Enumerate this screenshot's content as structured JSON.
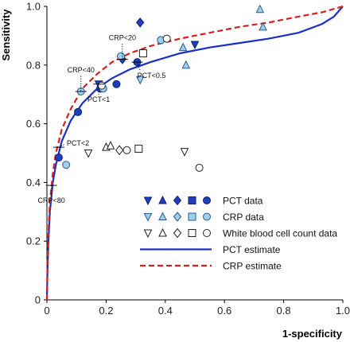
{
  "chart_data": {
    "type": "scatter",
    "xlabel": "1-specificity",
    "ylabel": "Sensitivity",
    "xlim": [
      0,
      1
    ],
    "ylim": [
      0,
      1
    ],
    "xticks": [
      "0",
      "0.2",
      "0.4",
      "0.6",
      "0.8",
      "1.0"
    ],
    "yticks": [
      "0",
      "0.2",
      "0.4",
      "0.6",
      "0.8",
      "1.0"
    ],
    "grid": false,
    "legend_position": "bottom-right",
    "colors": {
      "pct": "#1f3fbf",
      "crp": "#9fd0ee",
      "wbc": "#ffffff",
      "pct_line": "#1a2fc8",
      "crp_line": "#d62020"
    },
    "series": [
      {
        "name": "PCT data",
        "style": "pct",
        "points": [
          {
            "x": 0.315,
            "y": 0.945,
            "marker": "diamond"
          },
          {
            "x": 0.18,
            "y": 0.72,
            "marker": "circle"
          },
          {
            "x": 0.255,
            "y": 0.82,
            "marker": "diamond"
          },
          {
            "x": 0.235,
            "y": 0.735,
            "marker": "circle"
          },
          {
            "x": 0.105,
            "y": 0.64,
            "marker": "circle"
          },
          {
            "x": 0.04,
            "y": 0.485,
            "marker": "circle"
          },
          {
            "x": 0.305,
            "y": 0.81,
            "marker": "circle"
          },
          {
            "x": 0.175,
            "y": 0.735,
            "marker": "triangle-down"
          },
          {
            "x": 0.5,
            "y": 0.87,
            "marker": "triangle-down"
          }
        ]
      },
      {
        "name": "CRP data",
        "style": "crp",
        "points": [
          {
            "x": 0.72,
            "y": 0.99,
            "marker": "triangle-up"
          },
          {
            "x": 0.73,
            "y": 0.93,
            "marker": "triangle-up"
          },
          {
            "x": 0.46,
            "y": 0.86,
            "marker": "triangle-up"
          },
          {
            "x": 0.47,
            "y": 0.8,
            "marker": "triangle-up"
          },
          {
            "x": 0.315,
            "y": 0.75,
            "marker": "triangle-down"
          },
          {
            "x": 0.385,
            "y": 0.885,
            "marker": "circle"
          },
          {
            "x": 0.19,
            "y": 0.72,
            "marker": "circle"
          },
          {
            "x": 0.065,
            "y": 0.46,
            "marker": "circle"
          },
          {
            "x": 0.25,
            "y": 0.83,
            "marker": "circle"
          },
          {
            "x": 0.115,
            "y": 0.71,
            "marker": "circle"
          }
        ]
      },
      {
        "name": "White blood cell count data",
        "style": "wbc",
        "points": [
          {
            "x": 0.14,
            "y": 0.5,
            "marker": "triangle-down"
          },
          {
            "x": 0.2,
            "y": 0.52,
            "marker": "triangle-up"
          },
          {
            "x": 0.215,
            "y": 0.525,
            "marker": "triangle-up"
          },
          {
            "x": 0.245,
            "y": 0.51,
            "marker": "diamond"
          },
          {
            "x": 0.27,
            "y": 0.51,
            "marker": "circle"
          },
          {
            "x": 0.31,
            "y": 0.515,
            "marker": "square"
          },
          {
            "x": 0.465,
            "y": 0.505,
            "marker": "triangle-down"
          },
          {
            "x": 0.515,
            "y": 0.45,
            "marker": "circle"
          },
          {
            "x": 0.405,
            "y": 0.89,
            "marker": "circle"
          },
          {
            "x": 0.325,
            "y": 0.84,
            "marker": "square"
          },
          {
            "x": 0.185,
            "y": 0.73,
            "marker": "circle"
          }
        ]
      }
    ],
    "curves": [
      {
        "name": "PCT estimate",
        "style": "solid",
        "color_key": "pct_line",
        "x": [
          0,
          0.002,
          0.005,
          0.01,
          0.02,
          0.03,
          0.05,
          0.08,
          0.12,
          0.17,
          0.22,
          0.28,
          0.35,
          0.45,
          0.55,
          0.65,
          0.75,
          0.85,
          0.93,
          0.97,
          1.0
        ],
        "y": [
          0,
          0.1,
          0.2,
          0.3,
          0.4,
          0.46,
          0.54,
          0.61,
          0.67,
          0.72,
          0.755,
          0.785,
          0.81,
          0.84,
          0.86,
          0.875,
          0.89,
          0.91,
          0.94,
          0.965,
          1.0
        ]
      },
      {
        "name": "CRP estimate",
        "style": "dashed",
        "color_key": "crp_line",
        "x": [
          0,
          0.002,
          0.005,
          0.01,
          0.02,
          0.03,
          0.05,
          0.08,
          0.12,
          0.17,
          0.22,
          0.28,
          0.35,
          0.45,
          0.55,
          0.65,
          0.75,
          0.85,
          0.93,
          1.0
        ],
        "y": [
          0,
          0.13,
          0.23,
          0.33,
          0.43,
          0.5,
          0.58,
          0.65,
          0.72,
          0.77,
          0.81,
          0.84,
          0.865,
          0.89,
          0.91,
          0.93,
          0.945,
          0.965,
          0.98,
          1.0
        ]
      }
    ],
    "annotations": [
      {
        "text": "CRP<20",
        "x": 0.255,
        "y": 0.82,
        "label_pos": "above"
      },
      {
        "text": "CRP<40",
        "x": 0.115,
        "y": 0.71,
        "label_pos": "above"
      },
      {
        "text": "PCT<0.5",
        "x": 0.305,
        "y": 0.81,
        "label_pos": "below-right"
      },
      {
        "text": "PCT<1",
        "x": 0.175,
        "y": 0.735,
        "label_pos": "below"
      },
      {
        "text": "PCT<2",
        "x": 0.04,
        "y": 0.52,
        "label_pos": "right"
      },
      {
        "text": "CRP<80",
        "x": 0.015,
        "y": 0.39,
        "label_pos": "below"
      }
    ],
    "legend": {
      "entries": [
        {
          "label": "PCT data",
          "style": "pct",
          "markers": [
            "triangle-down",
            "triangle-up",
            "diamond",
            "square",
            "circle"
          ]
        },
        {
          "label": "CRP data",
          "style": "crp",
          "markers": [
            "triangle-down",
            "triangle-up",
            "diamond",
            "square",
            "circle"
          ]
        },
        {
          "label": "White blood cell count data",
          "style": "wbc",
          "markers": [
            "triangle-down",
            "triangle-up",
            "diamond",
            "square",
            "circle"
          ]
        },
        {
          "label": "PCT estimate",
          "line": "solid",
          "color_key": "pct_line"
        },
        {
          "label": "CRP estimate",
          "line": "dashed",
          "color_key": "crp_line"
        }
      ]
    }
  }
}
